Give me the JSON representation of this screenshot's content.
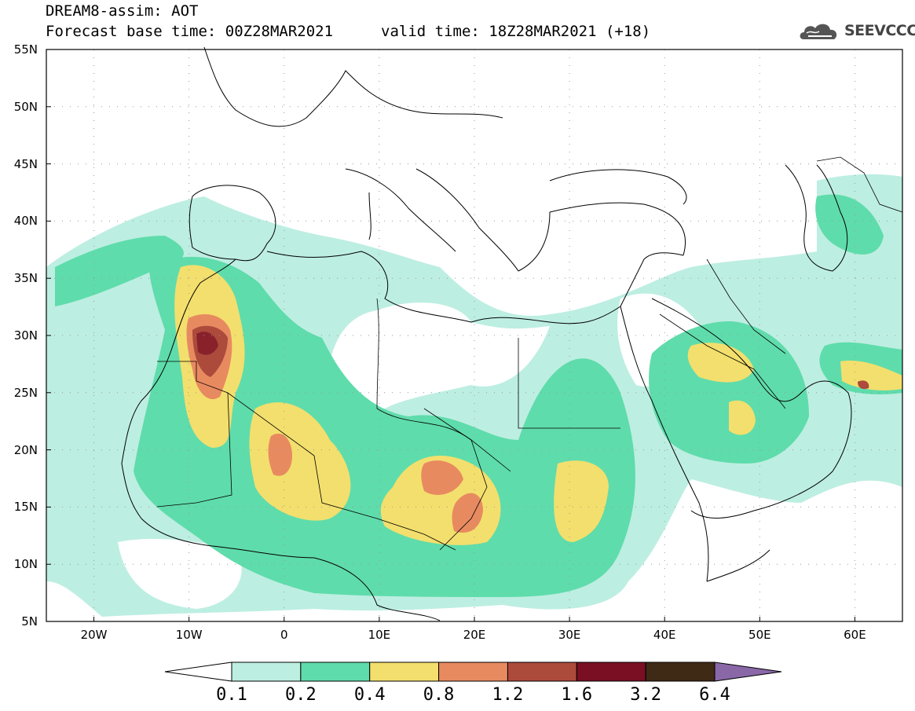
{
  "header": {
    "title": "DREAM8-assim: AOT",
    "base_time": "Forecast base time: 00Z28MAR2021",
    "valid_time": "valid time: 18Z28MAR2021 (+18)"
  },
  "logo": {
    "text": "SEEVCCC",
    "icon": "cloud-icon"
  },
  "map": {
    "extent": {
      "lon_min": -25,
      "lon_max": 65,
      "lat_min": 5,
      "lat_max": 55
    },
    "lat_ticks": [
      {
        "value": 55,
        "label": "55N"
      },
      {
        "value": 50,
        "label": "50N"
      },
      {
        "value": 45,
        "label": "45N"
      },
      {
        "value": 40,
        "label": "40N"
      },
      {
        "value": 35,
        "label": "35N"
      },
      {
        "value": 30,
        "label": "30N"
      },
      {
        "value": 25,
        "label": "25N"
      },
      {
        "value": 20,
        "label": "20N"
      },
      {
        "value": 15,
        "label": "15N"
      },
      {
        "value": 10,
        "label": "10N"
      },
      {
        "value": 5,
        "label": "5N"
      }
    ],
    "lon_ticks": [
      {
        "value": -20,
        "label": "20W"
      },
      {
        "value": -10,
        "label": "10W"
      },
      {
        "value": 0,
        "label": "0"
      },
      {
        "value": 10,
        "label": "10E"
      },
      {
        "value": 20,
        "label": "20E"
      },
      {
        "value": 30,
        "label": "30E"
      },
      {
        "value": 40,
        "label": "40E"
      },
      {
        "value": 50,
        "label": "50E"
      },
      {
        "value": 60,
        "label": "60E"
      }
    ],
    "gridlines": "dotted"
  },
  "colorbar": {
    "levels": [
      "0.1",
      "0.2",
      "0.4",
      "0.8",
      "1.2",
      "1.6",
      "3.2",
      "6.4"
    ],
    "colors": [
      "#ffffff",
      "#bdeee2",
      "#5fdcab",
      "#f3df6d",
      "#e88a60",
      "#ac4a3c",
      "#7a0f23",
      "#3f2a16",
      "#8a68a8"
    ]
  }
}
